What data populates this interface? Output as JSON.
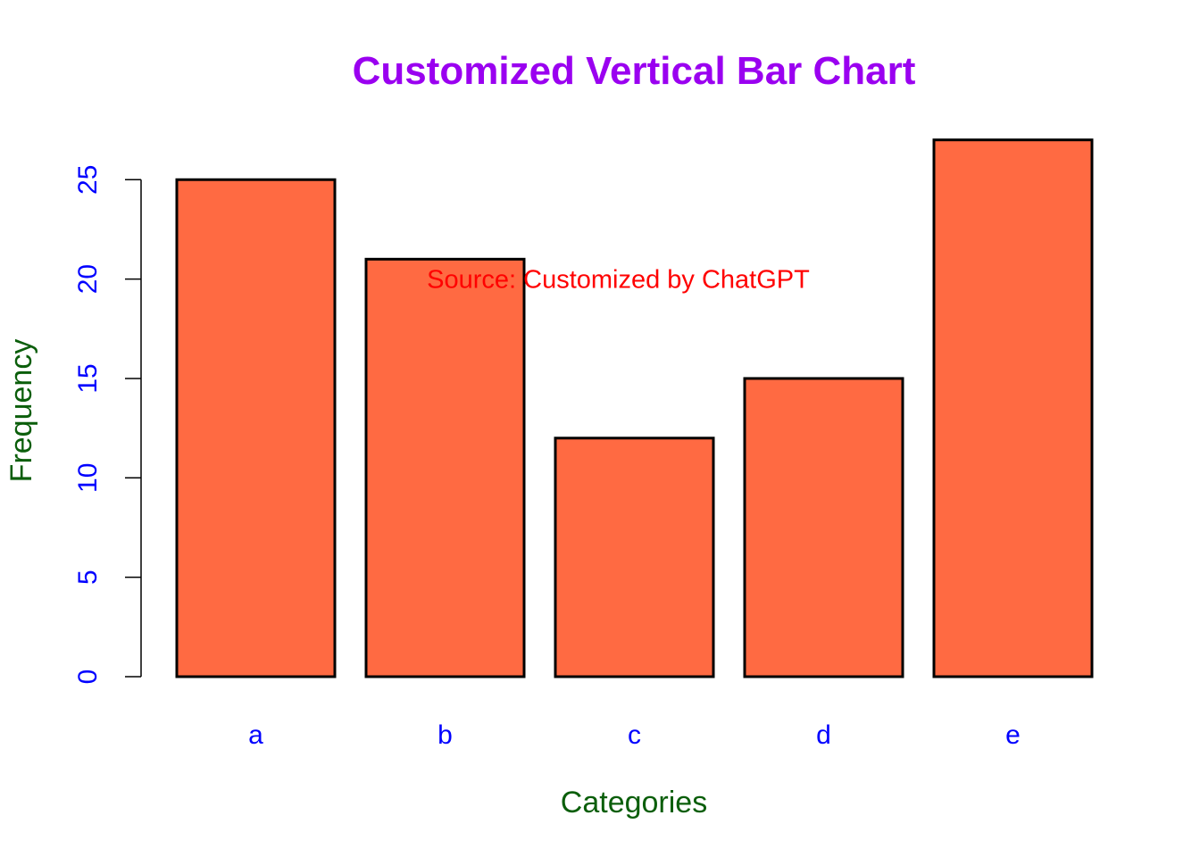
{
  "chart_data": {
    "type": "bar",
    "title": "Customized Vertical Bar Chart",
    "xlabel": "Categories",
    "ylabel": "Frequency",
    "categories": [
      "a",
      "b",
      "c",
      "d",
      "e"
    ],
    "values": [
      25,
      21,
      12,
      15,
      27
    ],
    "ylim": [
      0,
      27
    ],
    "y_ticks": [
      0,
      5,
      10,
      15,
      20,
      25
    ],
    "y_tick_labels": [
      "0",
      "5",
      "10",
      "15",
      "20",
      "25"
    ],
    "grid": false,
    "legend": "none",
    "annotation": {
      "text": "Source: Customized by ChatGPT",
      "x_category": "c",
      "y": 20
    },
    "colors": {
      "bar_fill": "#FF6A42",
      "bar_border": "#000000",
      "title": "#9A00F0",
      "axis_title": "#0B5E0B",
      "tick_labels": "#0000FF",
      "annotation": "#FF0000",
      "axis_line": "#000000"
    }
  }
}
